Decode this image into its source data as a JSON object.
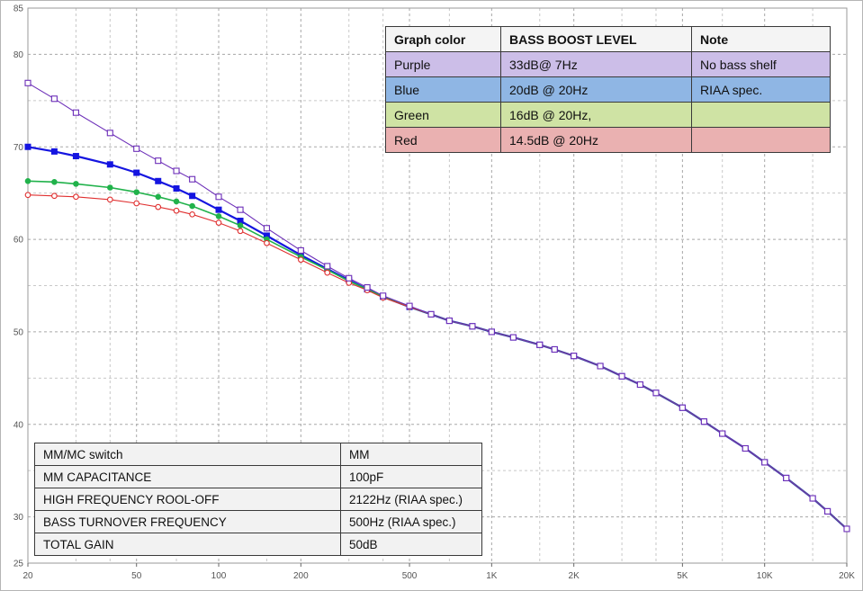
{
  "chart_data": {
    "type": "line",
    "title": "",
    "xlabel": "",
    "ylabel": "",
    "x": {
      "scale": "log",
      "min": 20,
      "max": 20000,
      "major_ticks": [
        20,
        50,
        100,
        200,
        500,
        1000,
        2000,
        5000,
        10000,
        20000
      ],
      "major_tick_labels": [
        "20",
        "50",
        "100",
        "200",
        "500",
        "1K",
        "2K",
        "5K",
        "10K",
        "20K"
      ],
      "minor_ticks": [
        30,
        40,
        70,
        150,
        300,
        400,
        700,
        1500,
        3000,
        4000,
        7000,
        15000
      ]
    },
    "y": {
      "min": 25,
      "max": 85,
      "unit": "dB",
      "grid_step": 5,
      "labeled_ticks": [
        85,
        80,
        70,
        60,
        50,
        40,
        30,
        25
      ]
    },
    "grid": true,
    "legend_position": "table-overlay-top-right",
    "series": [
      {
        "name": "Blue",
        "bass_boost": "20dB @ 20Hz",
        "note": "RIAA spec.",
        "color": "#1515E0",
        "marker": "square-filled",
        "line_width": 2.2,
        "points": [
          [
            20,
            70
          ],
          [
            25,
            69.5
          ],
          [
            30,
            69
          ],
          [
            40,
            68.1
          ],
          [
            50,
            67.2
          ],
          [
            60,
            66.3
          ],
          [
            70,
            65.5
          ],
          [
            80,
            64.7
          ],
          [
            100,
            63.2
          ],
          [
            120,
            62
          ],
          [
            150,
            60.4
          ],
          [
            200,
            58.3
          ],
          [
            250,
            56.8
          ],
          [
            300,
            55.6
          ],
          [
            350,
            54.6
          ],
          [
            400,
            53.8
          ],
          [
            500,
            52.7
          ],
          [
            600,
            51.9
          ],
          [
            700,
            51.2
          ],
          [
            850,
            50.6
          ],
          [
            1000,
            50
          ],
          [
            1200,
            49.4
          ],
          [
            1500,
            48.6
          ],
          [
            1700,
            48.1
          ],
          [
            2000,
            47.4
          ],
          [
            2500,
            46.3
          ],
          [
            3000,
            45.2
          ],
          [
            3500,
            44.3
          ],
          [
            4000,
            43.4
          ],
          [
            5000,
            41.8
          ],
          [
            6000,
            40.3
          ],
          [
            7000,
            39
          ],
          [
            8500,
            37.4
          ],
          [
            10000,
            35.9
          ],
          [
            12000,
            34.2
          ],
          [
            15000,
            32
          ],
          [
            17000,
            30.6
          ],
          [
            20000,
            28.7
          ]
        ]
      },
      {
        "name": "Green",
        "bass_boost": "16dB @ 20Hz,",
        "note": "",
        "color": "#21B24B",
        "marker": "circle-filled",
        "line_width": 1.6,
        "points": [
          [
            20,
            66.3
          ],
          [
            25,
            66.2
          ],
          [
            30,
            66
          ],
          [
            40,
            65.6
          ],
          [
            50,
            65.1
          ],
          [
            60,
            64.6
          ],
          [
            70,
            64.1
          ],
          [
            80,
            63.6
          ],
          [
            100,
            62.5
          ],
          [
            120,
            61.5
          ],
          [
            150,
            60
          ],
          [
            200,
            58.1
          ],
          [
            250,
            56.7
          ],
          [
            300,
            55.5
          ],
          [
            350,
            54.6
          ],
          [
            400,
            53.8
          ],
          [
            500,
            52.7
          ],
          [
            600,
            51.9
          ],
          [
            700,
            51.2
          ],
          [
            850,
            50.6
          ],
          [
            1000,
            50
          ],
          [
            1200,
            49.4
          ],
          [
            1500,
            48.6
          ],
          [
            1700,
            48.1
          ],
          [
            2000,
            47.4
          ],
          [
            2500,
            46.3
          ],
          [
            3000,
            45.2
          ],
          [
            3500,
            44.3
          ],
          [
            4000,
            43.4
          ],
          [
            5000,
            41.8
          ],
          [
            6000,
            40.3
          ],
          [
            7000,
            39
          ],
          [
            8500,
            37.4
          ],
          [
            10000,
            35.9
          ],
          [
            12000,
            34.2
          ],
          [
            15000,
            32
          ],
          [
            17000,
            30.6
          ],
          [
            20000,
            28.7
          ]
        ]
      },
      {
        "name": "Red",
        "bass_boost": "14.5dB @ 20Hz",
        "note": "",
        "color": "#E03030",
        "marker": "circle-open",
        "line_width": 1.1,
        "points": [
          [
            20,
            64.8
          ],
          [
            25,
            64.7
          ],
          [
            30,
            64.6
          ],
          [
            40,
            64.3
          ],
          [
            50,
            63.9
          ],
          [
            60,
            63.5
          ],
          [
            70,
            63.1
          ],
          [
            80,
            62.7
          ],
          [
            100,
            61.8
          ],
          [
            120,
            60.9
          ],
          [
            150,
            59.6
          ],
          [
            200,
            57.8
          ],
          [
            250,
            56.4
          ],
          [
            300,
            55.3
          ],
          [
            350,
            54.5
          ],
          [
            400,
            53.7
          ],
          [
            500,
            52.7
          ],
          [
            600,
            51.9
          ],
          [
            700,
            51.2
          ],
          [
            850,
            50.6
          ],
          [
            1000,
            50
          ],
          [
            1200,
            49.4
          ],
          [
            1500,
            48.6
          ],
          [
            1700,
            48.1
          ],
          [
            2000,
            47.4
          ],
          [
            2500,
            46.3
          ],
          [
            3000,
            45.2
          ],
          [
            3500,
            44.3
          ],
          [
            4000,
            43.4
          ],
          [
            5000,
            41.8
          ],
          [
            6000,
            40.3
          ],
          [
            7000,
            39
          ],
          [
            8500,
            37.4
          ],
          [
            10000,
            35.9
          ],
          [
            12000,
            34.2
          ],
          [
            15000,
            32
          ],
          [
            17000,
            30.6
          ],
          [
            20000,
            28.7
          ]
        ]
      },
      {
        "name": "Purple",
        "bass_boost": "33dB@ 7Hz",
        "note": "No bass shelf",
        "color": "#6C2EB8",
        "marker": "square-open",
        "line_width": 1.1,
        "points": [
          [
            20,
            76.9
          ],
          [
            25,
            75.2
          ],
          [
            30,
            73.7
          ],
          [
            40,
            71.5
          ],
          [
            50,
            69.8
          ],
          [
            60,
            68.5
          ],
          [
            70,
            67.4
          ],
          [
            80,
            66.5
          ],
          [
            100,
            64.6
          ],
          [
            120,
            63.2
          ],
          [
            150,
            61.2
          ],
          [
            200,
            58.8
          ],
          [
            250,
            57.1
          ],
          [
            300,
            55.8
          ],
          [
            350,
            54.8
          ],
          [
            400,
            53.9
          ],
          [
            500,
            52.8
          ],
          [
            600,
            51.9
          ],
          [
            700,
            51.2
          ],
          [
            850,
            50.6
          ],
          [
            1000,
            50
          ],
          [
            1200,
            49.4
          ],
          [
            1500,
            48.6
          ],
          [
            1700,
            48.1
          ],
          [
            2000,
            47.4
          ],
          [
            2500,
            46.3
          ],
          [
            3000,
            45.2
          ],
          [
            3500,
            44.3
          ],
          [
            4000,
            43.4
          ],
          [
            5000,
            41.8
          ],
          [
            6000,
            40.3
          ],
          [
            7000,
            39
          ],
          [
            8500,
            37.4
          ],
          [
            10000,
            35.9
          ],
          [
            12000,
            34.2
          ],
          [
            15000,
            32
          ],
          [
            17000,
            30.6
          ],
          [
            20000,
            28.7
          ]
        ]
      }
    ]
  },
  "legend_table": {
    "headers": [
      "Graph color",
      "BASS BOOST LEVEL",
      "Note"
    ],
    "rows": [
      {
        "color": "Purple",
        "boost": "33dB@ 7Hz",
        "note": "No bass shelf",
        "bg": "#CCBEE8"
      },
      {
        "color": "Blue",
        "boost": "20dB @ 20Hz",
        "note": "RIAA spec.",
        "bg": "#8FB6E4"
      },
      {
        "color": "Green",
        "boost": "16dB @ 20Hz,",
        "note": "",
        "bg": "#CFE3A4"
      },
      {
        "color": "Red",
        "boost": "14.5dB @ 20Hz",
        "note": "",
        "bg": "#EAB1B1"
      }
    ]
  },
  "settings_table": {
    "rows": [
      {
        "label": "MM/MC switch",
        "value": "MM"
      },
      {
        "label": "MM CAPACITANCE",
        "value": "100pF"
      },
      {
        "label": "HIGH FREQUENCY ROOL-OFF",
        "value": "2122Hz (RIAA spec.)"
      },
      {
        "label": "BASS TURNOVER FREQUENCY",
        "value": "500Hz (RIAA spec.)"
      },
      {
        "label": "TOTAL GAIN",
        "value": "50dB"
      }
    ]
  },
  "colors": {
    "grid_major": "#a8a8a8",
    "grid_minor": "#c8c8c8",
    "plot_border": "#9a9a9a",
    "axis_text": "#555555",
    "table_border": "#3a3a3a"
  }
}
